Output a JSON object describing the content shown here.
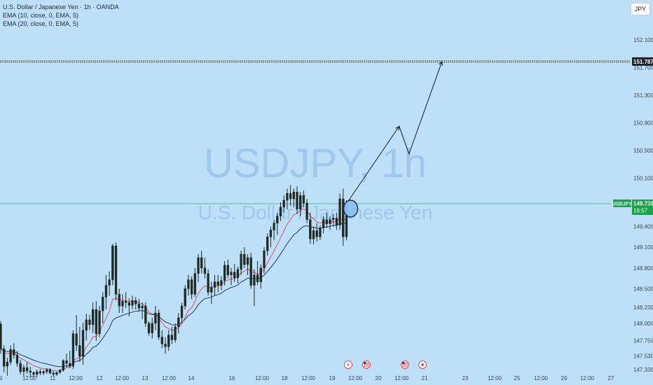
{
  "legend": {
    "symbol_title": "U.S. Dollar / Japanese Yen · 1h · OANDA",
    "ema1": "EMA (10, close, 0, EMA, 5)",
    "ema2": "EMA (20, close, 0, EMA, 5)"
  },
  "currency_button": "JPY",
  "watermark": {
    "line1": "USDJPY, 1h",
    "line2": "U.S. Dollar / Japanese Yen"
  },
  "price_tag": {
    "symbol": "USDJPY",
    "price": "149.730",
    "countdown": "16:57",
    "color": "#1aa34a"
  },
  "target_tag": {
    "price": "151.787"
  },
  "colors": {
    "background": "#bde0f8",
    "candle": "#1e2a22",
    "ema_fast": "#e0506a",
    "ema_slow": "#273a56",
    "current_line": "#1aa34a",
    "target_line": "#4e5a3a",
    "marker_fill": "#8cc1ee",
    "marker_stroke": "#1b2b40"
  },
  "event_icons": [
    "flash-event-icon",
    "us-flag-icon",
    "us-flag-icon",
    "jp-flag-icon"
  ],
  "chart_data": {
    "type": "candlestick",
    "ylim": [
      147.33,
      152.3
    ],
    "y_ticks": [
      152.1,
      151.7,
      151.3,
      150.9,
      150.5,
      150.1,
      149.4,
      149.1,
      148.8,
      148.5,
      148.23,
      148.0,
      147.75,
      147.53,
      147.33
    ],
    "y_tick_labels": [
      "152.100",
      "151.700",
      "151.300",
      "150.900",
      "150.500",
      "150.100",
      "149.400",
      "149.100",
      "148.800",
      "148.500",
      "148.230",
      "148.000",
      "147.750",
      "147.530",
      "147.330"
    ],
    "x_labels": [
      "9",
      "12:00",
      "11",
      "12:00",
      "12",
      "12:00",
      "13",
      "12:00",
      "14",
      "16",
      "12:00",
      "18",
      "12:00",
      "19",
      "12:00",
      "20",
      "12:00",
      "21",
      "23",
      "12:00",
      "25",
      "12:00",
      "26",
      "12:00",
      "27"
    ],
    "current_price": 149.73,
    "target_price": 151.787,
    "candles_ohlc": [
      [
        147.99,
        148.03,
        147.56,
        147.63
      ],
      [
        147.63,
        147.68,
        147.29,
        147.38
      ],
      [
        147.38,
        147.5,
        147.24,
        147.44
      ],
      [
        147.44,
        147.68,
        147.4,
        147.62
      ],
      [
        147.62,
        147.71,
        147.49,
        147.54
      ],
      [
        147.54,
        147.6,
        147.37,
        147.42
      ],
      [
        147.42,
        147.47,
        147.26,
        147.3
      ],
      [
        147.3,
        147.4,
        147.24,
        147.36
      ],
      [
        147.36,
        147.44,
        147.27,
        147.31
      ],
      [
        147.31,
        147.37,
        147.22,
        147.29
      ],
      [
        147.29,
        147.3,
        147.22,
        147.26
      ],
      [
        147.26,
        147.33,
        147.22,
        147.3
      ],
      [
        147.3,
        147.34,
        147.25,
        147.28
      ],
      [
        147.28,
        147.33,
        147.25,
        147.3
      ],
      [
        147.3,
        147.35,
        147.27,
        147.33
      ],
      [
        147.33,
        147.35,
        147.26,
        147.28
      ],
      [
        147.28,
        147.31,
        147.23,
        147.26
      ],
      [
        147.26,
        147.3,
        147.24,
        147.29
      ],
      [
        147.29,
        147.34,
        147.27,
        147.32
      ],
      [
        147.32,
        147.48,
        147.3,
        147.46
      ],
      [
        147.46,
        147.56,
        147.36,
        147.42
      ],
      [
        147.42,
        147.6,
        147.35,
        147.38
      ],
      [
        147.38,
        147.9,
        147.34,
        147.85
      ],
      [
        147.85,
        148.12,
        147.6,
        147.68
      ],
      [
        147.68,
        147.95,
        147.44,
        147.52
      ],
      [
        147.52,
        148.01,
        147.4,
        147.9
      ],
      [
        147.9,
        148.14,
        147.75,
        148.05
      ],
      [
        148.05,
        148.12,
        147.9,
        147.98
      ],
      [
        147.98,
        148.3,
        147.86,
        148.2
      ],
      [
        148.2,
        148.32,
        147.75,
        147.85
      ],
      [
        147.85,
        148.25,
        147.8,
        148.18
      ],
      [
        148.18,
        148.45,
        148.0,
        148.38
      ],
      [
        148.38,
        148.7,
        148.2,
        148.55
      ],
      [
        148.55,
        148.75,
        148.4,
        148.63
      ],
      [
        148.63,
        149.15,
        148.55,
        149.12
      ],
      [
        149.12,
        149.17,
        148.33,
        148.42
      ],
      [
        148.42,
        148.5,
        148.15,
        148.25
      ],
      [
        148.25,
        148.42,
        148.15,
        148.32
      ],
      [
        148.32,
        148.45,
        148.22,
        148.3
      ],
      [
        148.3,
        148.36,
        148.1,
        148.26
      ],
      [
        148.26,
        148.4,
        148.2,
        148.33
      ],
      [
        148.33,
        148.38,
        148.2,
        148.28
      ],
      [
        148.28,
        148.35,
        148.18,
        148.22
      ],
      [
        148.22,
        148.3,
        148.06,
        148.25
      ],
      [
        148.25,
        148.3,
        147.95,
        148.0
      ],
      [
        148.0,
        148.03,
        147.82,
        147.86
      ],
      [
        147.86,
        148.08,
        147.78,
        148.0
      ],
      [
        148.0,
        148.25,
        147.9,
        148.15
      ],
      [
        148.15,
        148.2,
        147.76,
        147.8
      ],
      [
        147.8,
        147.9,
        147.64,
        147.7
      ],
      [
        147.7,
        147.8,
        147.56,
        147.66
      ],
      [
        147.66,
        147.9,
        147.6,
        147.83
      ],
      [
        147.83,
        147.95,
        147.7,
        147.76
      ],
      [
        147.76,
        148.0,
        147.72,
        147.95
      ],
      [
        147.95,
        148.15,
        147.85,
        148.08
      ],
      [
        148.08,
        148.3,
        148.0,
        148.25
      ],
      [
        148.25,
        148.55,
        148.2,
        148.5
      ],
      [
        148.5,
        148.7,
        148.4,
        148.63
      ],
      [
        148.63,
        148.68,
        148.35,
        148.42
      ],
      [
        148.42,
        148.8,
        148.38,
        148.72
      ],
      [
        148.72,
        149.0,
        148.6,
        148.95
      ],
      [
        148.95,
        149.05,
        148.72,
        148.8
      ],
      [
        148.8,
        148.95,
        148.65,
        148.72
      ],
      [
        148.72,
        148.78,
        148.4,
        148.45
      ],
      [
        148.45,
        148.6,
        148.28,
        148.52
      ],
      [
        148.52,
        148.7,
        148.4,
        148.6
      ],
      [
        148.6,
        148.7,
        148.45,
        148.55
      ],
      [
        148.55,
        148.68,
        148.48,
        148.62
      ],
      [
        148.62,
        148.9,
        148.55,
        148.84
      ],
      [
        148.84,
        148.92,
        148.65,
        148.7
      ],
      [
        148.7,
        148.8,
        148.55,
        148.74
      ],
      [
        148.74,
        148.86,
        148.6,
        148.66
      ],
      [
        148.66,
        148.82,
        148.58,
        148.78
      ],
      [
        148.78,
        149.05,
        148.7,
        149.0
      ],
      [
        149.0,
        149.1,
        148.8,
        148.85
      ],
      [
        148.85,
        149.0,
        148.7,
        148.95
      ],
      [
        148.95,
        149.02,
        148.5,
        148.55
      ],
      [
        148.55,
        148.78,
        148.25,
        148.7
      ],
      [
        148.7,
        148.9,
        148.55,
        148.6
      ],
      [
        148.6,
        148.85,
        148.5,
        148.8
      ],
      [
        148.8,
        149.1,
        148.72,
        149.05
      ],
      [
        149.05,
        149.3,
        148.98,
        149.25
      ],
      [
        149.25,
        149.4,
        149.1,
        149.35
      ],
      [
        149.35,
        149.5,
        149.2,
        149.45
      ],
      [
        149.45,
        149.6,
        149.28,
        149.55
      ],
      [
        149.55,
        149.75,
        149.48,
        149.68
      ],
      [
        149.68,
        149.85,
        149.6,
        149.78
      ],
      [
        149.78,
        149.95,
        149.65,
        149.88
      ],
      [
        149.88,
        150.0,
        149.7,
        149.8
      ],
      [
        149.8,
        149.95,
        149.68,
        149.9
      ],
      [
        149.9,
        149.98,
        149.58,
        149.65
      ],
      [
        149.65,
        149.9,
        149.55,
        149.85
      ],
      [
        149.85,
        149.92,
        149.68,
        149.74
      ],
      [
        149.74,
        149.8,
        149.45,
        149.5
      ],
      [
        149.5,
        149.6,
        149.15,
        149.22
      ],
      [
        149.22,
        149.4,
        149.14,
        149.34
      ],
      [
        149.34,
        149.45,
        149.18,
        149.25
      ],
      [
        149.25,
        149.42,
        149.2,
        149.38
      ],
      [
        149.38,
        149.55,
        149.3,
        149.5
      ],
      [
        149.5,
        149.6,
        149.38,
        149.44
      ],
      [
        149.44,
        149.55,
        149.35,
        149.5
      ],
      [
        149.5,
        149.58,
        149.4,
        149.52
      ],
      [
        149.52,
        149.6,
        149.35,
        149.42
      ],
      [
        149.42,
        149.88,
        149.35,
        149.8
      ],
      [
        149.8,
        149.95,
        149.12,
        149.25
      ],
      [
        149.25,
        149.78,
        149.2,
        149.73
      ]
    ],
    "projection_path": [
      {
        "bar": 105,
        "price": 149.73
      },
      {
        "bar": 121,
        "price": 150.85
      },
      {
        "bar": 124,
        "price": 150.45
      },
      {
        "bar": 134,
        "price": 151.787
      }
    ]
  }
}
